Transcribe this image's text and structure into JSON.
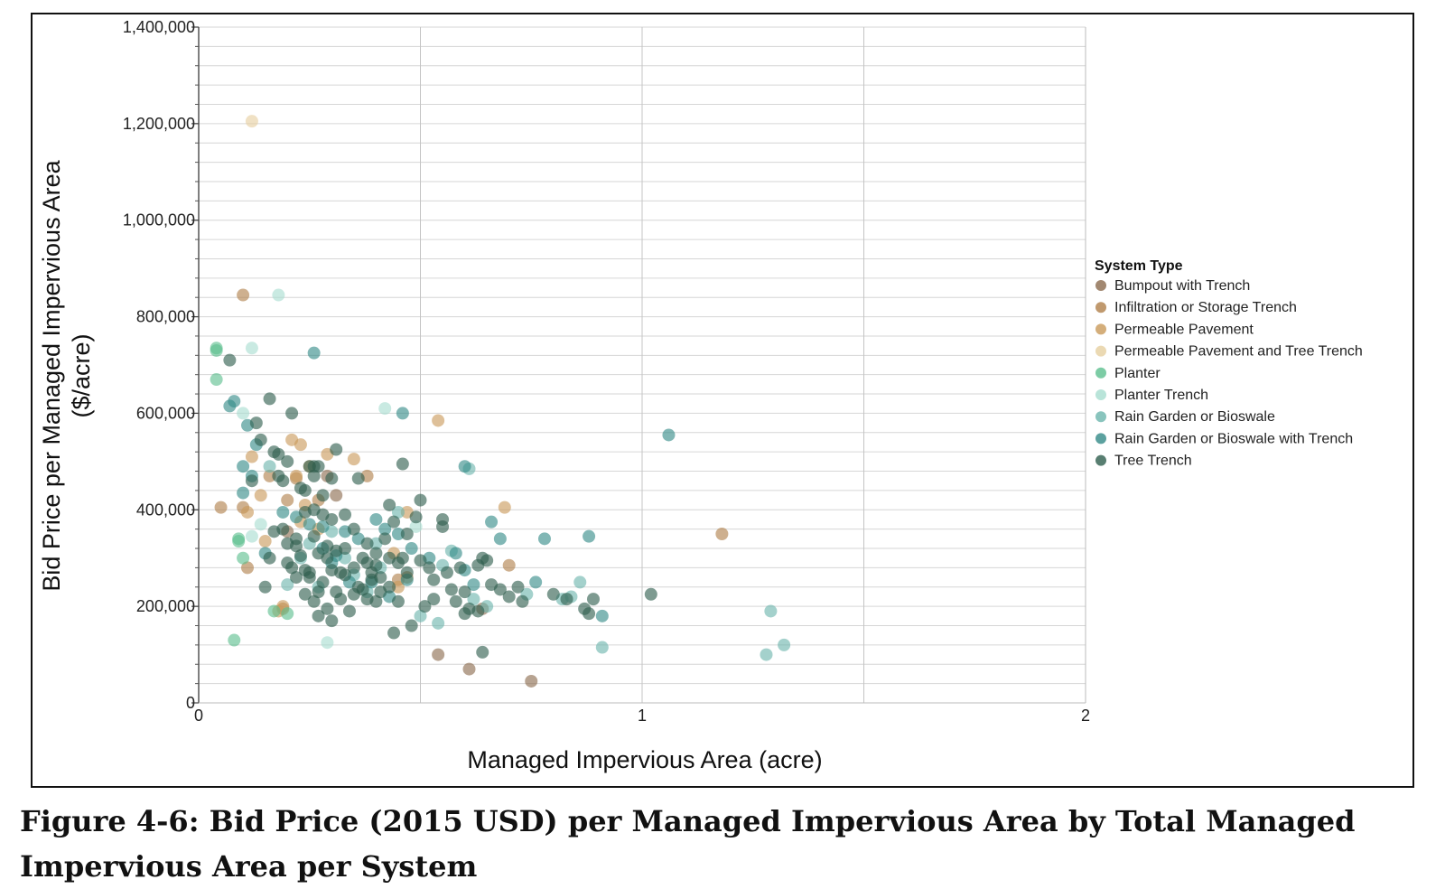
{
  "caption": "Figure 4-6: Bid Price (2015 USD) per Managed Impervious Area by Total Managed Impervious Area per System",
  "chart_data": {
    "type": "scatter",
    "title": "",
    "xlabel": "Managed Impervious Area (acre)",
    "ylabel_line1": "Bid Price per Managed Impervious Area",
    "ylabel_line2": "($/acre)",
    "xlim": [
      0,
      2
    ],
    "ylim": [
      0,
      1400000
    ],
    "x_ticks": [
      {
        "value": 0,
        "label": "0"
      },
      {
        "value": 1,
        "label": "1"
      },
      {
        "value": 2,
        "label": "2"
      }
    ],
    "y_ticks": [
      {
        "value": 0,
        "label": "0"
      },
      {
        "value": 200000,
        "label": "200,000"
      },
      {
        "value": 400000,
        "label": "400,000"
      },
      {
        "value": 600000,
        "label": "600,000"
      },
      {
        "value": 800000,
        "label": "800,000"
      },
      {
        "value": 1000000,
        "label": "1,000,000"
      },
      {
        "value": 1200000,
        "label": "1,200,000"
      },
      {
        "value": 1400000,
        "label": "1,400,000"
      }
    ],
    "legend_title": "System Type",
    "legend_position": "right",
    "series": [
      {
        "name": "Bumpout with Trench",
        "color": "#8b6a4e",
        "points": [
          [
            0.29,
            470000
          ],
          [
            0.31,
            430000
          ],
          [
            0.54,
            100000
          ],
          [
            0.61,
            70000
          ],
          [
            0.75,
            45000
          ],
          [
            0.64,
            195000
          ],
          [
            0.2,
            355000
          ]
        ]
      },
      {
        "name": "Infiltration or Storage Trench",
        "color": "#b07f4a",
        "points": [
          [
            0.1,
            845000
          ],
          [
            0.05,
            405000
          ],
          [
            0.1,
            405000
          ],
          [
            0.11,
            280000
          ],
          [
            0.16,
            470000
          ],
          [
            0.2,
            420000
          ],
          [
            0.22,
            465000
          ],
          [
            0.27,
            420000
          ],
          [
            0.38,
            470000
          ],
          [
            0.45,
            255000
          ],
          [
            0.47,
            260000
          ],
          [
            0.7,
            285000
          ],
          [
            1.18,
            350000
          ],
          [
            0.19,
            195000
          ]
        ]
      },
      {
        "name": "Permeable Pavement",
        "color": "#c99a5a",
        "points": [
          [
            0.12,
            510000
          ],
          [
            0.14,
            430000
          ],
          [
            0.21,
            545000
          ],
          [
            0.23,
            535000
          ],
          [
            0.22,
            470000
          ],
          [
            0.25,
            490000
          ],
          [
            0.29,
            515000
          ],
          [
            0.35,
            505000
          ],
          [
            0.47,
            395000
          ],
          [
            0.54,
            585000
          ],
          [
            0.69,
            405000
          ],
          [
            0.44,
            310000
          ],
          [
            0.45,
            240000
          ],
          [
            0.15,
            335000
          ],
          [
            0.19,
            200000
          ],
          [
            0.18,
            190000
          ],
          [
            0.23,
            375000
          ],
          [
            0.27,
            360000
          ],
          [
            0.24,
            410000
          ],
          [
            0.11,
            395000
          ]
        ]
      },
      {
        "name": "Permeable Pavement and Tree Trench",
        "color": "#e6cfa0",
        "points": [
          [
            0.12,
            1205000
          ]
        ]
      },
      {
        "name": "Planter",
        "color": "#5cbf8e",
        "points": [
          [
            0.04,
            735000
          ],
          [
            0.04,
            730000
          ],
          [
            0.04,
            670000
          ],
          [
            0.09,
            340000
          ],
          [
            0.1,
            300000
          ],
          [
            0.09,
            335000
          ],
          [
            0.08,
            130000
          ],
          [
            0.17,
            190000
          ],
          [
            0.2,
            185000
          ]
        ]
      },
      {
        "name": "Planter Trench",
        "color": "#a8ddd0",
        "points": [
          [
            0.18,
            845000
          ],
          [
            0.12,
            735000
          ],
          [
            0.1,
            600000
          ],
          [
            0.42,
            610000
          ],
          [
            0.14,
            370000
          ],
          [
            0.12,
            345000
          ],
          [
            0.29,
            125000
          ],
          [
            0.49,
            365000
          ]
        ]
      },
      {
        "name": "Rain Garden or Bioswale",
        "color": "#6cb5ad",
        "points": [
          [
            0.61,
            485000
          ],
          [
            0.55,
            285000
          ],
          [
            0.57,
            315000
          ],
          [
            0.5,
            180000
          ],
          [
            0.54,
            165000
          ],
          [
            0.62,
            215000
          ],
          [
            0.65,
            200000
          ],
          [
            0.74,
            225000
          ],
          [
            0.82,
            215000
          ],
          [
            0.86,
            250000
          ],
          [
            0.84,
            220000
          ],
          [
            0.91,
            115000
          ],
          [
            1.28,
            100000
          ],
          [
            1.32,
            120000
          ],
          [
            1.29,
            190000
          ],
          [
            0.45,
            395000
          ],
          [
            0.4,
            330000
          ],
          [
            0.3,
            355000
          ],
          [
            0.25,
            330000
          ],
          [
            0.23,
            300000
          ],
          [
            0.2,
            245000
          ],
          [
            0.35,
            265000
          ],
          [
            0.38,
            230000
          ],
          [
            0.16,
            490000
          ],
          [
            0.41,
            280000
          ],
          [
            0.33,
            300000
          ],
          [
            0.27,
            240000
          ]
        ]
      },
      {
        "name": "Rain Garden or Bioswale with Trench",
        "color": "#338a87",
        "points": [
          [
            0.26,
            725000
          ],
          [
            0.08,
            625000
          ],
          [
            0.07,
            615000
          ],
          [
            0.11,
            575000
          ],
          [
            0.13,
            535000
          ],
          [
            0.12,
            470000
          ],
          [
            0.1,
            490000
          ],
          [
            0.1,
            435000
          ],
          [
            0.15,
            310000
          ],
          [
            0.19,
            395000
          ],
          [
            0.22,
            385000
          ],
          [
            0.25,
            370000
          ],
          [
            0.28,
            365000
          ],
          [
            0.33,
            355000
          ],
          [
            0.36,
            340000
          ],
          [
            0.4,
            380000
          ],
          [
            0.42,
            360000
          ],
          [
            0.45,
            350000
          ],
          [
            0.48,
            320000
          ],
          [
            0.52,
            300000
          ],
          [
            0.58,
            310000
          ],
          [
            0.6,
            275000
          ],
          [
            0.62,
            245000
          ],
          [
            0.66,
            375000
          ],
          [
            0.68,
            340000
          ],
          [
            0.76,
            250000
          ],
          [
            0.78,
            340000
          ],
          [
            0.88,
            345000
          ],
          [
            0.91,
            180000
          ],
          [
            1.06,
            555000
          ],
          [
            0.46,
            600000
          ],
          [
            0.6,
            490000
          ],
          [
            0.28,
            320000
          ],
          [
            0.31,
            305000
          ],
          [
            0.3,
            290000
          ],
          [
            0.34,
            250000
          ],
          [
            0.39,
            250000
          ],
          [
            0.43,
            220000
          ],
          [
            0.47,
            255000
          ]
        ]
      },
      {
        "name": "Tree Trench",
        "color": "#2e5e4e",
        "points": [
          [
            0.07,
            710000
          ],
          [
            0.16,
            630000
          ],
          [
            0.21,
            600000
          ],
          [
            0.27,
            490000
          ],
          [
            0.25,
            490000
          ],
          [
            0.26,
            470000
          ],
          [
            0.3,
            465000
          ],
          [
            0.31,
            525000
          ],
          [
            0.36,
            465000
          ],
          [
            0.23,
            445000
          ],
          [
            0.24,
            440000
          ],
          [
            0.19,
            460000
          ],
          [
            0.18,
            515000
          ],
          [
            0.17,
            520000
          ],
          [
            0.2,
            500000
          ],
          [
            0.26,
            400000
          ],
          [
            0.28,
            390000
          ],
          [
            0.3,
            380000
          ],
          [
            0.33,
            390000
          ],
          [
            0.35,
            360000
          ],
          [
            0.38,
            330000
          ],
          [
            0.4,
            310000
          ],
          [
            0.43,
            300000
          ],
          [
            0.45,
            290000
          ],
          [
            0.5,
            420000
          ],
          [
            0.49,
            385000
          ],
          [
            0.55,
            380000
          ],
          [
            0.55,
            365000
          ],
          [
            0.5,
            295000
          ],
          [
            0.52,
            280000
          ],
          [
            0.53,
            255000
          ],
          [
            0.57,
            235000
          ],
          [
            0.58,
            210000
          ],
          [
            0.6,
            185000
          ],
          [
            0.63,
            285000
          ],
          [
            0.63,
            190000
          ],
          [
            0.64,
            105000
          ],
          [
            0.68,
            235000
          ],
          [
            0.72,
            240000
          ],
          [
            0.73,
            210000
          ],
          [
            0.8,
            225000
          ],
          [
            0.83,
            215000
          ],
          [
            0.87,
            195000
          ],
          [
            0.88,
            185000
          ],
          [
            0.89,
            215000
          ],
          [
            1.02,
            225000
          ],
          [
            0.48,
            160000
          ],
          [
            0.44,
            145000
          ],
          [
            0.47,
            270000
          ],
          [
            0.45,
            210000
          ],
          [
            0.43,
            240000
          ],
          [
            0.41,
            260000
          ],
          [
            0.39,
            270000
          ],
          [
            0.37,
            300000
          ],
          [
            0.35,
            280000
          ],
          [
            0.33,
            320000
          ],
          [
            0.32,
            270000
          ],
          [
            0.3,
            275000
          ],
          [
            0.29,
            300000
          ],
          [
            0.28,
            250000
          ],
          [
            0.27,
            230000
          ],
          [
            0.25,
            260000
          ],
          [
            0.24,
            275000
          ],
          [
            0.22,
            260000
          ],
          [
            0.21,
            280000
          ],
          [
            0.2,
            330000
          ],
          [
            0.19,
            360000
          ],
          [
            0.17,
            355000
          ],
          [
            0.16,
            300000
          ],
          [
            0.15,
            240000
          ],
          [
            0.22,
            340000
          ],
          [
            0.23,
            305000
          ],
          [
            0.24,
            225000
          ],
          [
            0.26,
            210000
          ],
          [
            0.27,
            180000
          ],
          [
            0.29,
            195000
          ],
          [
            0.3,
            170000
          ],
          [
            0.31,
            230000
          ],
          [
            0.32,
            215000
          ],
          [
            0.34,
            190000
          ],
          [
            0.36,
            240000
          ],
          [
            0.37,
            235000
          ],
          [
            0.38,
            290000
          ],
          [
            0.4,
            210000
          ],
          [
            0.41,
            230000
          ],
          [
            0.42,
            340000
          ],
          [
            0.44,
            375000
          ],
          [
            0.46,
            300000
          ],
          [
            0.47,
            350000
          ],
          [
            0.51,
            200000
          ],
          [
            0.53,
            215000
          ],
          [
            0.56,
            270000
          ],
          [
            0.59,
            280000
          ],
          [
            0.6,
            230000
          ],
          [
            0.61,
            195000
          ],
          [
            0.65,
            295000
          ],
          [
            0.7,
            220000
          ],
          [
            0.66,
            245000
          ],
          [
            0.64,
            300000
          ],
          [
            0.43,
            410000
          ],
          [
            0.46,
            495000
          ],
          [
            0.28,
            430000
          ],
          [
            0.26,
            490000
          ],
          [
            0.24,
            395000
          ],
          [
            0.22,
            325000
          ],
          [
            0.2,
            290000
          ],
          [
            0.12,
            460000
          ],
          [
            0.14,
            545000
          ],
          [
            0.13,
            580000
          ],
          [
            0.18,
            470000
          ],
          [
            0.29,
            325000
          ],
          [
            0.31,
            315000
          ],
          [
            0.33,
            265000
          ],
          [
            0.35,
            225000
          ],
          [
            0.38,
            215000
          ],
          [
            0.39,
            255000
          ],
          [
            0.4,
            285000
          ],
          [
            0.27,
            310000
          ],
          [
            0.26,
            345000
          ],
          [
            0.25,
            270000
          ]
        ]
      }
    ]
  }
}
